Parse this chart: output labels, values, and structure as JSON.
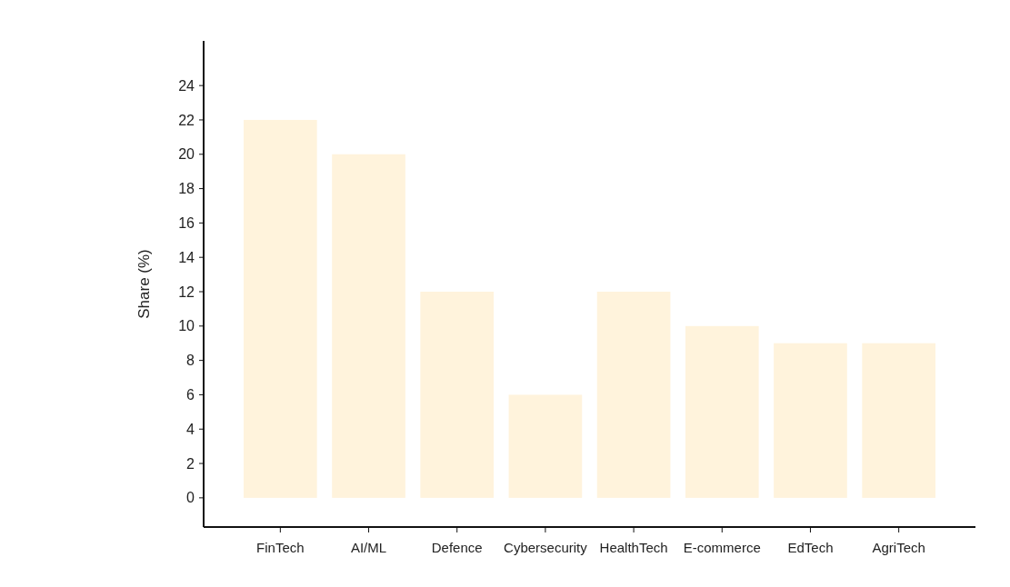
{
  "chart_data": {
    "type": "bar",
    "ylabel": "Share (%)",
    "categories": [
      "FinTech",
      "AI/ML",
      "Defence",
      "Cybersecurity",
      "HealthTech",
      "E-commerce",
      "EdTech",
      "AgriTech"
    ],
    "values": [
      22,
      20,
      12,
      6,
      12,
      10,
      9,
      9
    ],
    "color": "#fff3dc",
    "ylim": [
      -1.7,
      26.6
    ],
    "yticks": [
      0,
      2,
      4,
      6,
      8,
      10,
      12,
      14,
      16,
      18,
      20,
      22,
      24
    ],
    "grid": false
  }
}
